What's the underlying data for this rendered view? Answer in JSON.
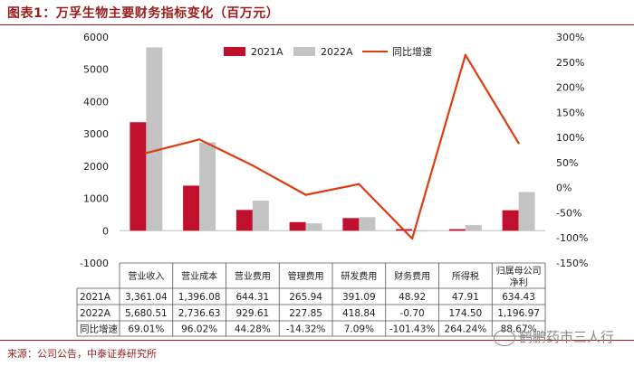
{
  "title": "图表1：万孚生物主要财务指标变化（百万元）",
  "source": "来源：公司公告，中泰证券研究所",
  "watermark": "鹤鹏药市三人行",
  "colors": {
    "bar2021": "#c0102e",
    "bar2022": "#c3c3c3",
    "line": "#e03a10",
    "accent": "#9e1b1b"
  },
  "chart_data": {
    "type": "bar",
    "categories": [
      "营业收入",
      "营业成本",
      "营业费用",
      "管理费用",
      "研发费用",
      "财务费用",
      "所得税",
      "归属母公司净利"
    ],
    "series": [
      {
        "name": "2021A",
        "type": "bar",
        "axis": "left",
        "values": [
          3361.04,
          1396.08,
          644.31,
          265.94,
          391.09,
          48.92,
          47.91,
          634.43
        ],
        "labels": [
          "3,361.04",
          "1,396.08",
          "644.31",
          "265.94",
          "391.09",
          "48.92",
          "47.91",
          "634.43"
        ]
      },
      {
        "name": "2022A",
        "type": "bar",
        "axis": "left",
        "values": [
          5680.51,
          2736.63,
          929.61,
          227.85,
          418.84,
          -0.7,
          174.5,
          1196.97
        ],
        "labels": [
          "5,680.51",
          "2,736.63",
          "929.61",
          "227.85",
          "418.84",
          "-0.70",
          "174.50",
          "1,196.97"
        ]
      },
      {
        "name": "同比增速",
        "type": "line",
        "axis": "right",
        "values": [
          69.01,
          96.02,
          44.28,
          -14.32,
          7.09,
          -101.43,
          264.24,
          88.67
        ],
        "labels": [
          "69.01%",
          "96.02%",
          "44.28%",
          "-14.32%",
          "7.09%",
          "-101.43%",
          "264.24%",
          "88.67%"
        ]
      }
    ],
    "y_left": {
      "range": [
        -1000,
        6000
      ],
      "ticks": [
        "-1000",
        "0",
        "1000",
        "2000",
        "3000",
        "4000",
        "5000",
        "6000"
      ]
    },
    "y_right": {
      "range": [
        -150,
        300
      ],
      "ticks": [
        "-150%",
        "-100%",
        "-50%",
        "0%",
        "50%",
        "100%",
        "150%",
        "200%",
        "250%",
        "300%"
      ]
    },
    "legend_position": "top",
    "grid": false
  }
}
